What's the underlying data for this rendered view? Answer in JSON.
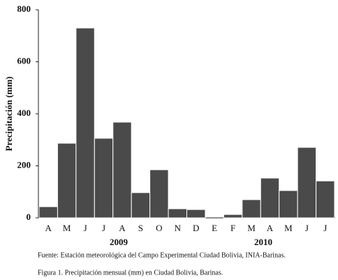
{
  "chart_data": {
    "type": "bar",
    "y_label": "Precipitación (mm)",
    "categories": [
      "A",
      "M",
      "J",
      "J",
      "A",
      "S",
      "O",
      "N",
      "D",
      "E",
      "F",
      "M",
      "A",
      "M",
      "J",
      "J"
    ],
    "values": [
      43,
      287,
      730,
      306,
      368,
      97,
      185,
      35,
      32,
      0,
      13,
      70,
      153,
      105,
      271,
      142
    ],
    "color": "#4a4a4a",
    "year_labels": [
      "2009",
      "2010"
    ],
    "ylim": [
      0,
      800
    ],
    "yticks": [
      0,
      200,
      400,
      600,
      800
    ],
    "grid": false,
    "source": "Fuente: Estación meteorológica del Campo Experimental Ciudad Bolivia, INIA-Barinas.",
    "caption": "Figura 1. Precipitación mensual (mm) en Ciudad Bolivia, Barinas."
  }
}
